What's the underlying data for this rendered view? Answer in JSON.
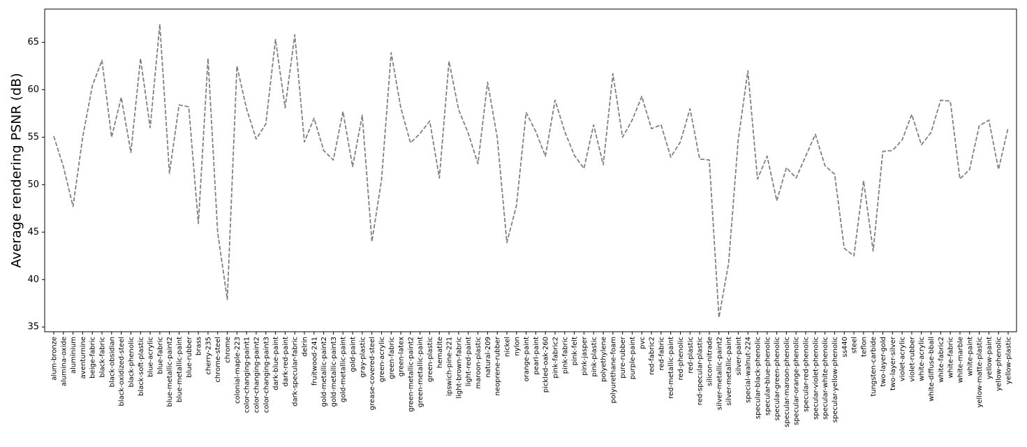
{
  "chart_data": {
    "type": "line",
    "ylabel": "Average rendering PSNR (dB)",
    "xlabel": "",
    "title": "",
    "ylim": [
      34.5,
      68.5
    ],
    "yticks": [
      35,
      40,
      45,
      50,
      55,
      60,
      65
    ],
    "line_color": "#808080",
    "line_style": "dashed",
    "grid": false,
    "categories": [
      "alum-bronze",
      "alumina-oxide",
      "aluminium",
      "aventurnine",
      "beige-fabric",
      "black-fabric",
      "black-obsidian",
      "black-oxidized-steel",
      "black-phenolic",
      "black-soft-plastic",
      "blue-acrylic",
      "blue-fabric",
      "blue-metallic-paint2",
      "blue-metallic-paint",
      "blue-rubber",
      "brass",
      "cherry-235",
      "chrome-steel",
      "chrome",
      "colonial-maple-223",
      "color-changing-paint1",
      "color-changing-paint2",
      "color-changing-paint3",
      "dark-blue-paint",
      "dark-red-paint",
      "dark-specular-fabric",
      "delrin",
      "fruitwood-241",
      "gold-metallic-paint2",
      "gold-metallic-paint3",
      "gold-metallic-paint",
      "gold-paint",
      "gray-plastic",
      "grease-covered-steel",
      "green-acrylic",
      "green-fabric",
      "green-latex",
      "green-metallic-paint2",
      "green-metallic-paint",
      "green-plastic",
      "hematite",
      "ipswich-pine-221",
      "light-brown-fabric",
      "light-red-paint",
      "maroon-plastic",
      "natural-209",
      "neoprene-rubber",
      "nickel",
      "nylon",
      "orange-paint",
      "pearl-paint",
      "pickled-oak-260",
      "pink-fabric2",
      "pink-fabric",
      "pink-felt",
      "pink-jasper",
      "pink-plastic",
      "polyethylene",
      "polyurethane-foam",
      "pure-rubber",
      "purple-paint",
      "pvc",
      "red-fabric2",
      "red-fabric",
      "red-metallic-paint",
      "red-phenolic",
      "red-plastic",
      "red-specular-plastic",
      "silicon-nitrade",
      "silver-metallic-paint2",
      "silver-metallic-paint",
      "silver-paint",
      "special-walnut-224",
      "specular-black-phenolic",
      "specular-blue-phenolic",
      "specular-green-phenolic",
      "specular-maroon-phenolic",
      "specular-orange-phenolic",
      "specular-red-phenolic",
      "specular-violet-phenolic",
      "specular-white-phenolic",
      "specular-yellow-phenolic",
      "ss440",
      "steel",
      "teflon",
      "tungsten-carbide",
      "two-layer-gold",
      "two-layer-silver",
      "violet-acrylic",
      "violet-rubber",
      "white-acrylic",
      "white-diffuse-bball",
      "white-fabric2",
      "white-fabric",
      "white-marble",
      "white-paint",
      "yellow-matte-plastic",
      "yellow-paint",
      "yellow-phenolic",
      "yellow-plastic"
    ],
    "values": [
      55.1,
      51.9,
      47.7,
      55.0,
      60.4,
      63.1,
      55.0,
      59.2,
      53.4,
      63.3,
      56.0,
      66.9,
      51.2,
      58.4,
      58.2,
      45.9,
      63.3,
      45.0,
      37.9,
      62.5,
      58.0,
      54.8,
      56.4,
      65.3,
      58.1,
      65.8,
      54.5,
      57.0,
      53.6,
      52.6,
      57.7,
      51.9,
      57.3,
      44.0,
      50.5,
      63.9,
      58.1,
      54.4,
      55.4,
      56.7,
      50.7,
      63.0,
      57.9,
      55.4,
      52.2,
      60.8,
      55.0,
      43.9,
      47.8,
      57.6,
      55.6,
      53.0,
      58.9,
      55.6,
      53.1,
      51.7,
      56.3,
      52.1,
      61.7,
      55.0,
      56.8,
      59.3,
      55.9,
      56.3,
      52.9,
      54.5,
      58.0,
      52.7,
      52.6,
      36.0,
      41.7,
      54.7,
      62.0,
      50.6,
      53.0,
      48.3,
      51.8,
      50.7,
      53.0,
      55.3,
      52.0,
      51.1,
      43.3,
      42.5,
      50.4,
      43.0,
      53.5,
      53.6,
      54.7,
      57.4,
      54.2,
      55.5,
      58.9,
      58.8,
      50.6,
      51.6,
      56.2,
      56.8,
      51.6,
      56.0
    ]
  }
}
